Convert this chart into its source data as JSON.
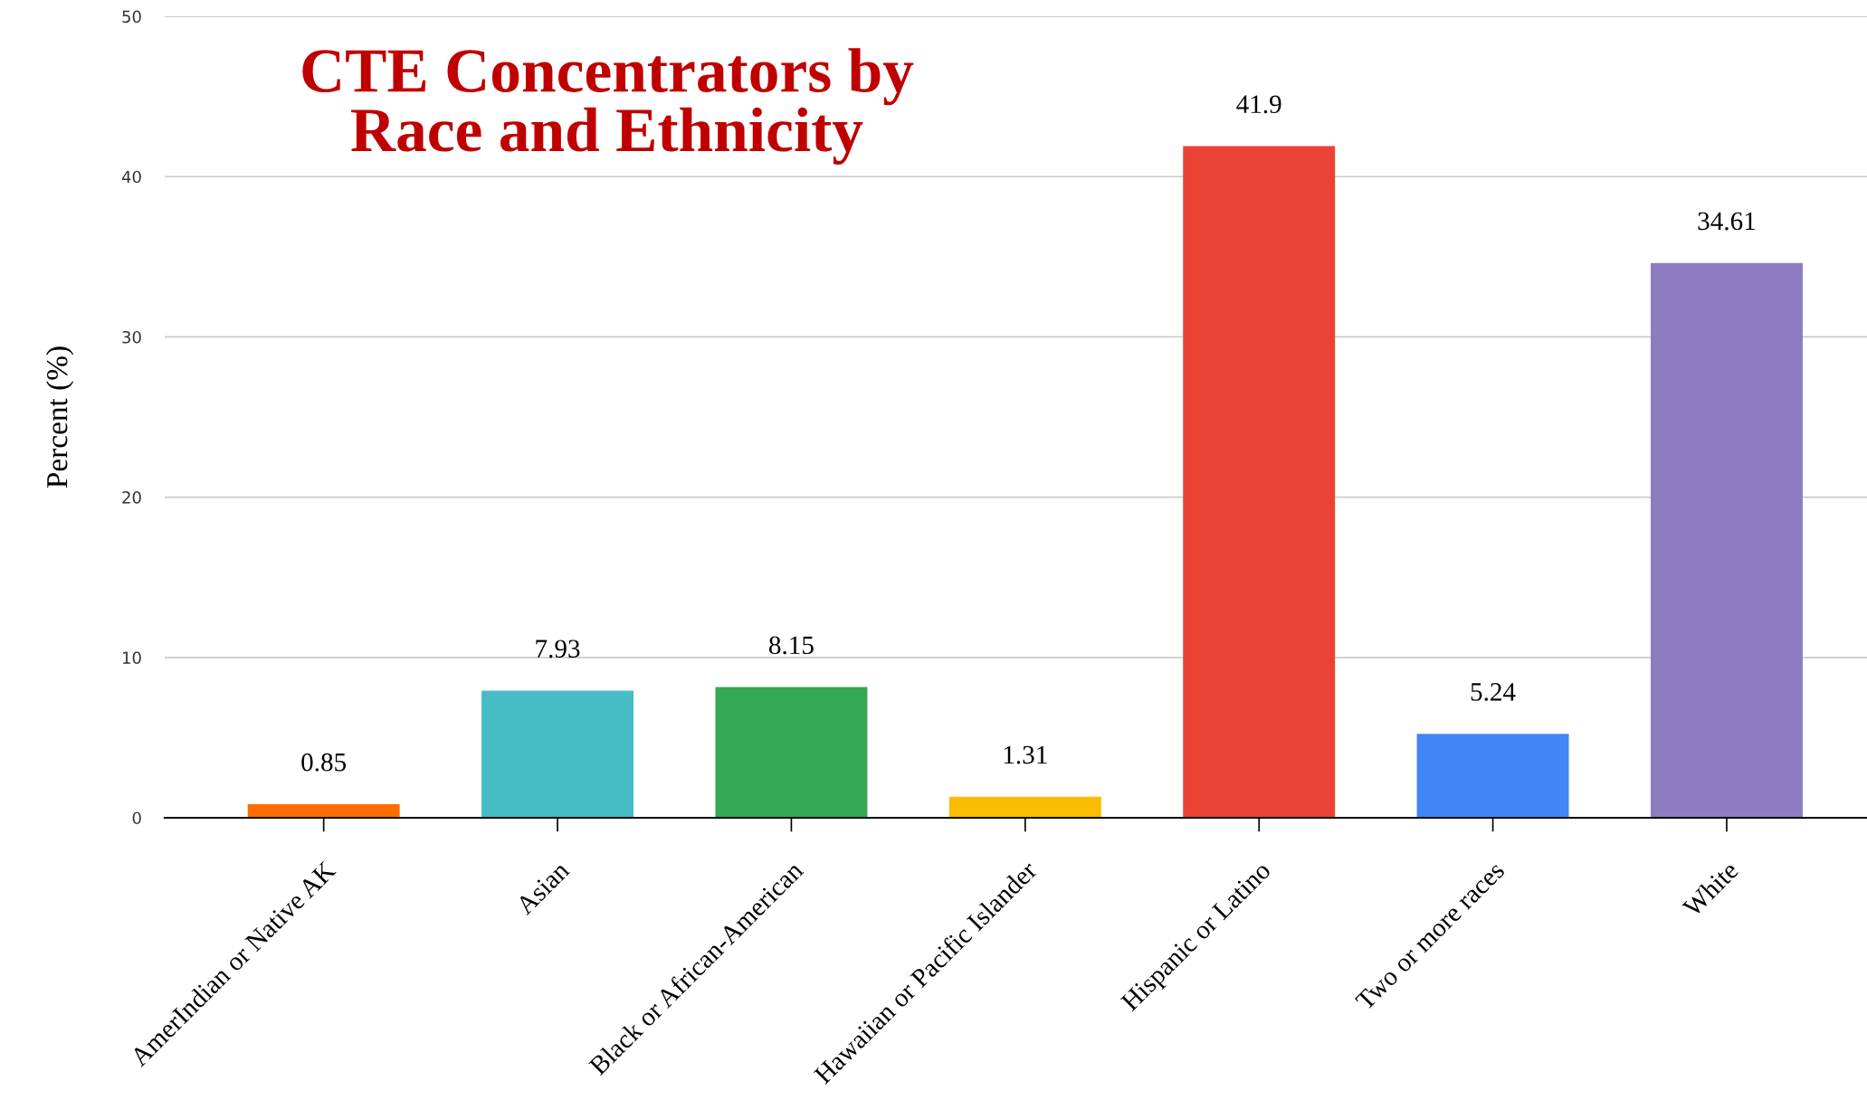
{
  "chart_data": {
    "type": "bar",
    "title": "CTE Concentrators by\nRace and Ethnicity",
    "ylabel": "Percent (%)",
    "categories": [
      "AmerIndian or Native AK",
      "Asian",
      "Black or African-American",
      "Hawaiian or Pacific Islander",
      "Hispanic or Latino",
      "Two or more races",
      "White"
    ],
    "values": [
      0.85,
      7.93,
      8.15,
      1.31,
      41.9,
      5.24,
      34.61
    ],
    "colors": [
      "#ff6d01",
      "#46bdc6",
      "#34a853",
      "#fbbc04",
      "#ea4335",
      "#4285f4",
      "#8e7cc3"
    ],
    "ylim": [
      0,
      50
    ],
    "yticks": [
      0,
      10,
      20,
      30,
      40,
      50
    ],
    "grid": "y",
    "data_labels": true,
    "legend": false
  }
}
